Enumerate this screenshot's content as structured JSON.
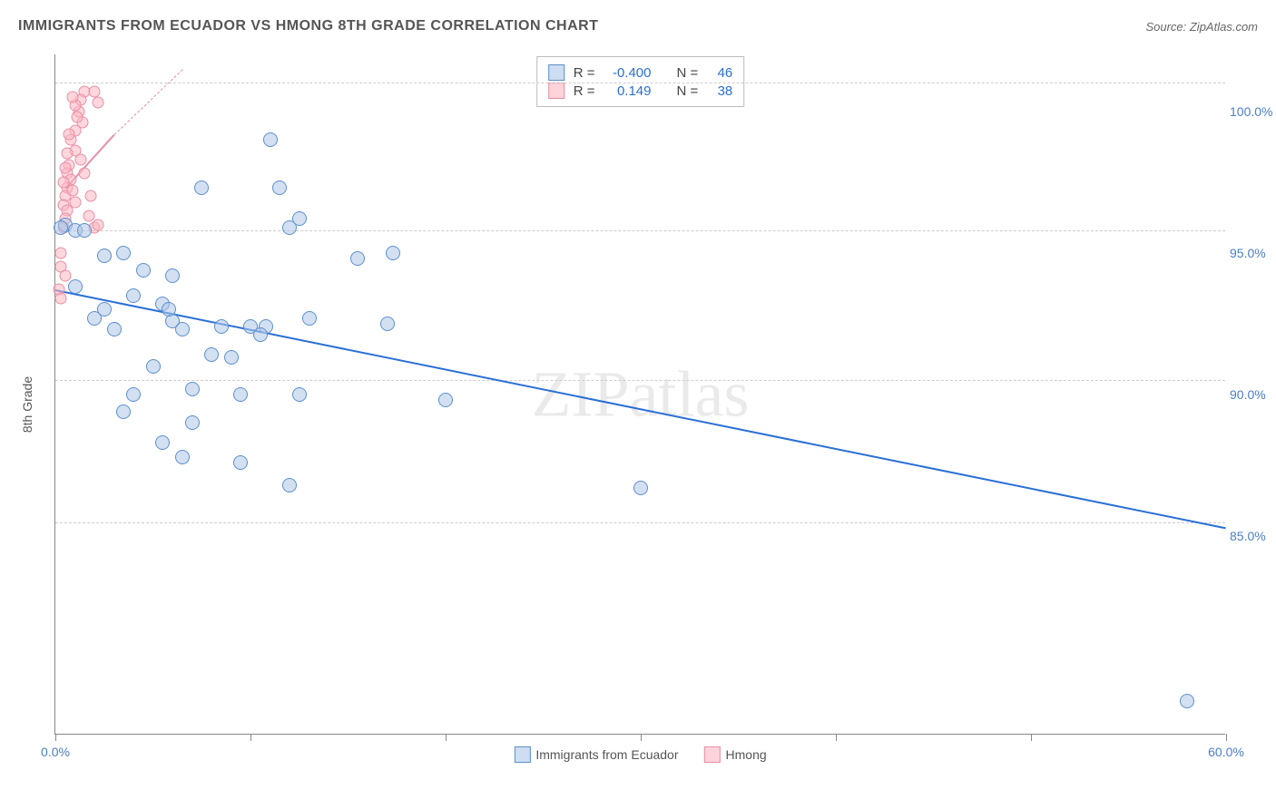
{
  "header": {
    "title": "IMMIGRANTS FROM ECUADOR VS HMONG 8TH GRADE CORRELATION CHART",
    "source": "Source: ZipAtlas.com"
  },
  "watermark": "ZIPatlas",
  "chart": {
    "type": "scatter",
    "ylabel": "8th Grade",
    "xlim": [
      0,
      60
    ],
    "ylim": [
      78,
      102
    ],
    "xtick_positions": [
      0,
      10,
      20,
      30,
      40,
      50,
      60
    ],
    "xtick_labels": [
      "0.0%",
      "",
      "",
      "",
      "",
      "",
      "60.0%"
    ],
    "ytick_positions": [
      85,
      90,
      95,
      100
    ],
    "ytick_labels": [
      "85.0%",
      "90.0%",
      "95.0%",
      "100.0%"
    ],
    "grid_positions": [
      85.5,
      90.5,
      95.8,
      101
    ],
    "background_color": "#ffffff",
    "grid_color": "#cccccc",
    "series": [
      {
        "name": "Immigrants from Ecuador",
        "color_fill": "rgba(174,199,232,0.55)",
        "color_stroke": "#5b8fce",
        "marker": "circle",
        "marker_size": 16,
        "R": "-0.400",
        "N": "46",
        "trend": {
          "x1": 0,
          "y1": 93.7,
          "x2": 60,
          "y2": 85.3,
          "color": "#2a6fd6"
        },
        "points": [
          [
            0.5,
            96.0
          ],
          [
            2.5,
            94.9
          ],
          [
            3.5,
            95.0
          ],
          [
            11.0,
            99.0
          ],
          [
            1.0,
            95.8
          ],
          [
            7.5,
            97.3
          ],
          [
            11.5,
            97.3
          ],
          [
            12.5,
            96.2
          ],
          [
            12.0,
            95.9
          ],
          [
            15.5,
            94.8
          ],
          [
            17.3,
            95.0
          ],
          [
            13.0,
            92.7
          ],
          [
            4.0,
            93.5
          ],
          [
            2.5,
            93.0
          ],
          [
            5.5,
            93.2
          ],
          [
            6.0,
            92.6
          ],
          [
            5.8,
            93.0
          ],
          [
            3.0,
            92.3
          ],
          [
            6.5,
            92.3
          ],
          [
            10.0,
            92.4
          ],
          [
            10.8,
            92.4
          ],
          [
            10.5,
            92.1
          ],
          [
            8.5,
            92.4
          ],
          [
            8.0,
            91.4
          ],
          [
            9.0,
            91.3
          ],
          [
            5.0,
            91.0
          ],
          [
            7.0,
            90.2
          ],
          [
            4.0,
            90.0
          ],
          [
            9.5,
            90.0
          ],
          [
            3.5,
            89.4
          ],
          [
            7.0,
            89.0
          ],
          [
            5.5,
            88.3
          ],
          [
            6.5,
            87.8
          ],
          [
            9.5,
            87.6
          ],
          [
            12.5,
            90.0
          ],
          [
            12.0,
            86.8
          ],
          [
            20.0,
            89.8
          ],
          [
            30.0,
            86.7
          ],
          [
            58.0,
            79.2
          ],
          [
            1.0,
            93.8
          ],
          [
            2.0,
            92.7
          ],
          [
            4.5,
            94.4
          ],
          [
            0.3,
            95.9
          ],
          [
            1.5,
            95.8
          ],
          [
            6.0,
            94.2
          ],
          [
            17.0,
            92.5
          ]
        ]
      },
      {
        "name": "Hmong",
        "color_fill": "rgba(255,182,193,0.55)",
        "color_stroke": "#e78fa5",
        "marker": "circle",
        "marker_size": 13,
        "R": "0.149",
        "N": "38",
        "trend_solid": {
          "x1": 0.5,
          "y1": 97.3,
          "x2": 3.0,
          "y2": 99.2,
          "color": "#e78fa5"
        },
        "trend_dashed": {
          "x1": 3.0,
          "y1": 99.2,
          "x2": 6.5,
          "y2": 101.5,
          "color": "#e78fa5"
        },
        "points": [
          [
            1.5,
            100.7
          ],
          [
            2.0,
            100.7
          ],
          [
            1.3,
            100.4
          ],
          [
            2.2,
            100.3
          ],
          [
            1.2,
            100.0
          ],
          [
            1.4,
            99.6
          ],
          [
            1.0,
            99.3
          ],
          [
            0.8,
            99.0
          ],
          [
            1.0,
            98.6
          ],
          [
            0.6,
            98.5
          ],
          [
            0.7,
            98.1
          ],
          [
            0.6,
            97.8
          ],
          [
            0.8,
            97.6
          ],
          [
            0.6,
            97.3
          ],
          [
            0.5,
            97.0
          ],
          [
            0.4,
            96.7
          ],
          [
            0.6,
            96.5
          ],
          [
            0.5,
            96.2
          ],
          [
            0.4,
            95.9
          ],
          [
            0.3,
            95.0
          ],
          [
            0.3,
            94.5
          ],
          [
            0.2,
            93.7
          ],
          [
            0.3,
            93.4
          ],
          [
            1.7,
            96.3
          ],
          [
            2.0,
            95.9
          ],
          [
            2.2,
            96.0
          ],
          [
            1.8,
            97.0
          ],
          [
            1.5,
            97.8
          ],
          [
            1.0,
            100.2
          ],
          [
            0.9,
            100.5
          ],
          [
            1.1,
            99.8
          ],
          [
            0.5,
            98.0
          ],
          [
            0.7,
            99.2
          ],
          [
            0.4,
            97.5
          ],
          [
            0.9,
            97.2
          ],
          [
            1.3,
            98.3
          ],
          [
            0.5,
            94.2
          ],
          [
            1.0,
            96.8
          ]
        ]
      }
    ]
  },
  "legend_top": {
    "rows": [
      {
        "swatch": "blue",
        "r_label": "R =",
        "r_val": "-0.400",
        "n_label": "N =",
        "n_val": "46"
      },
      {
        "swatch": "pink",
        "r_label": "R =",
        "r_val": "0.149",
        "n_label": "N =",
        "n_val": "38"
      }
    ]
  },
  "legend_bottom": {
    "items": [
      {
        "swatch": "blue",
        "label": "Immigrants from Ecuador"
      },
      {
        "swatch": "pink",
        "label": "Hmong"
      }
    ]
  }
}
